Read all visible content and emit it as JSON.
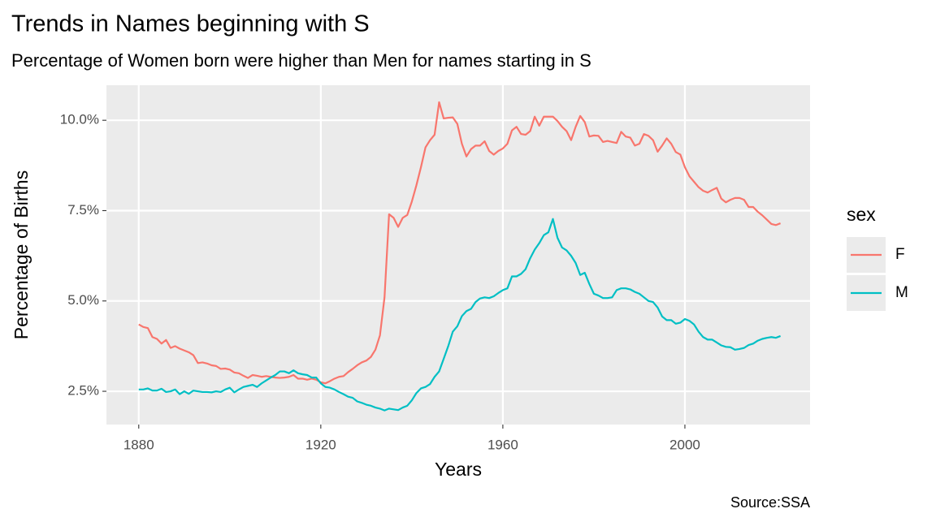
{
  "chart_data": {
    "type": "line",
    "title": "Trends in Names beginning with S",
    "subtitle": "Percentage of Women born were higher than Men for names starting in S",
    "x_label": "Years",
    "y_label": "Percentage of Births",
    "caption": "Source:SSA",
    "legend_title": "sex",
    "legend_position": "right",
    "grid": true,
    "xlim": [
      1872.9,
      2027.5
    ],
    "xticks": [
      1880,
      1920,
      1960,
      2000
    ],
    "ylim": [
      1.58,
      10.97
    ],
    "yticks": [
      {
        "value": 2.5,
        "label": "2.5%"
      },
      {
        "value": 5,
        "label": "5.0%"
      },
      {
        "value": 7.5,
        "label": "7.5%"
      },
      {
        "value": 10,
        "label": "10.0%"
      }
    ],
    "x": [
      1880,
      1881,
      1882,
      1883,
      1884,
      1885,
      1886,
      1887,
      1888,
      1889,
      1890,
      1891,
      1892,
      1893,
      1894,
      1895,
      1896,
      1897,
      1898,
      1899,
      1900,
      1901,
      1902,
      1903,
      1904,
      1905,
      1906,
      1907,
      1908,
      1909,
      1910,
      1911,
      1912,
      1913,
      1914,
      1915,
      1916,
      1917,
      1918,
      1919,
      1920,
      1921,
      1922,
      1923,
      1924,
      1925,
      1926,
      1927,
      1928,
      1929,
      1930,
      1931,
      1932,
      1933,
      1934,
      1935,
      1936,
      1937,
      1938,
      1939,
      1940,
      1941,
      1942,
      1943,
      1944,
      1945,
      1946,
      1947,
      1948,
      1949,
      1950,
      1951,
      1952,
      1953,
      1954,
      1955,
      1956,
      1957,
      1958,
      1959,
      1960,
      1961,
      1962,
      1963,
      1964,
      1965,
      1966,
      1967,
      1968,
      1969,
      1970,
      1971,
      1972,
      1973,
      1974,
      1975,
      1976,
      1977,
      1978,
      1979,
      1980,
      1981,
      1982,
      1983,
      1984,
      1985,
      1986,
      1987,
      1988,
      1989,
      1990,
      1991,
      1992,
      1993,
      1994,
      1995,
      1996,
      1997,
      1998,
      1999,
      2000,
      2001,
      2002,
      2003,
      2004,
      2005,
      2006,
      2007,
      2008,
      2009,
      2010,
      2011,
      2012,
      2013,
      2014,
      2015,
      2016,
      2017,
      2018,
      2019,
      2020,
      2021
    ],
    "series": [
      {
        "name": "F",
        "color": "#F8766D",
        "values": [
          4.35,
          4.28,
          4.25,
          4.0,
          3.95,
          3.82,
          3.92,
          3.7,
          3.75,
          3.68,
          3.63,
          3.58,
          3.5,
          3.28,
          3.3,
          3.27,
          3.22,
          3.2,
          3.12,
          3.13,
          3.1,
          3.02,
          3.0,
          2.93,
          2.87,
          2.95,
          2.93,
          2.9,
          2.92,
          2.9,
          2.88,
          2.87,
          2.88,
          2.9,
          2.95,
          2.85,
          2.85,
          2.82,
          2.85,
          2.82,
          2.75,
          2.72,
          2.78,
          2.85,
          2.9,
          2.92,
          3.03,
          3.12,
          3.22,
          3.3,
          3.35,
          3.45,
          3.65,
          4.05,
          5.1,
          7.4,
          7.3,
          7.05,
          7.3,
          7.38,
          7.75,
          8.2,
          8.7,
          9.25,
          9.45,
          9.6,
          10.5,
          10.05,
          10.07,
          10.08,
          9.9,
          9.35,
          9.0,
          9.2,
          9.3,
          9.3,
          9.42,
          9.15,
          9.05,
          9.15,
          9.22,
          9.35,
          9.72,
          9.82,
          9.62,
          9.6,
          9.7,
          10.1,
          9.85,
          10.1,
          10.1,
          10.1,
          9.98,
          9.82,
          9.7,
          9.45,
          9.82,
          10.12,
          9.95,
          9.55,
          9.58,
          9.57,
          9.4,
          9.43,
          9.4,
          9.37,
          9.68,
          9.55,
          9.52,
          9.3,
          9.35,
          9.62,
          9.57,
          9.45,
          9.13,
          9.3,
          9.5,
          9.35,
          9.12,
          9.05,
          8.7,
          8.45,
          8.3,
          8.15,
          8.05,
          8.0,
          8.07,
          8.13,
          7.83,
          7.73,
          7.8,
          7.85,
          7.85,
          7.8,
          7.6,
          7.6,
          7.47,
          7.37,
          7.25,
          7.13,
          7.1,
          7.15
        ]
      },
      {
        "name": "M",
        "color": "#00BFC4",
        "values": [
          2.55,
          2.55,
          2.58,
          2.52,
          2.52,
          2.57,
          2.48,
          2.5,
          2.55,
          2.42,
          2.5,
          2.43,
          2.52,
          2.5,
          2.48,
          2.48,
          2.47,
          2.5,
          2.48,
          2.55,
          2.6,
          2.47,
          2.55,
          2.62,
          2.65,
          2.68,
          2.62,
          2.72,
          2.8,
          2.88,
          2.95,
          3.05,
          3.05,
          3.0,
          3.08,
          3.0,
          2.97,
          2.95,
          2.88,
          2.88,
          2.72,
          2.62,
          2.6,
          2.55,
          2.48,
          2.42,
          2.35,
          2.32,
          2.22,
          2.18,
          2.13,
          2.1,
          2.05,
          2.02,
          1.97,
          2.02,
          2.0,
          1.98,
          2.05,
          2.1,
          2.25,
          2.45,
          2.58,
          2.62,
          2.7,
          2.9,
          3.05,
          3.4,
          3.75,
          4.15,
          4.3,
          4.58,
          4.72,
          4.78,
          4.97,
          5.07,
          5.1,
          5.08,
          5.13,
          5.22,
          5.3,
          5.35,
          5.68,
          5.68,
          5.75,
          5.88,
          6.18,
          6.42,
          6.6,
          6.82,
          6.9,
          7.27,
          6.75,
          6.48,
          6.4,
          6.25,
          6.05,
          5.72,
          5.78,
          5.47,
          5.2,
          5.15,
          5.08,
          5.08,
          5.1,
          5.3,
          5.35,
          5.35,
          5.32,
          5.25,
          5.2,
          5.1,
          5.0,
          4.97,
          4.82,
          4.57,
          4.47,
          4.47,
          4.37,
          4.4,
          4.5,
          4.45,
          4.35,
          4.15,
          4.0,
          3.93,
          3.93,
          3.85,
          3.77,
          3.73,
          3.72,
          3.65,
          3.67,
          3.7,
          3.78,
          3.82,
          3.9,
          3.95,
          3.98,
          4.0,
          3.98,
          4.03
        ]
      }
    ]
  }
}
